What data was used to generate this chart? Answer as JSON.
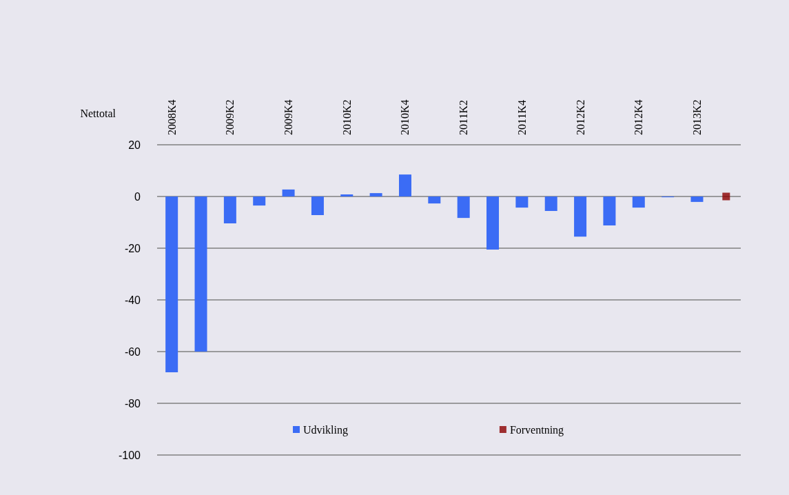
{
  "chart_data": {
    "type": "bar",
    "ylabel": "Nettotal",
    "categories": [
      "2008K4",
      null,
      "2009K2",
      null,
      "2009K4",
      null,
      "2010K2",
      null,
      "2010K4",
      null,
      "2011K2",
      null,
      "2011K4",
      null,
      "2012K2",
      null,
      "2012K4",
      null,
      "2013K2",
      null
    ],
    "series": [
      {
        "name": "Udvikling",
        "color": "#3b6cf5",
        "values": [
          -68,
          -60,
          -10.4,
          -3.5,
          2.7,
          -7.2,
          0.8,
          1.3,
          8.5,
          -2.7,
          -8.3,
          -20.5,
          -4.3,
          -5.6,
          -15.5,
          -11.2,
          -4.3,
          -0.3,
          -2.1,
          null
        ]
      },
      {
        "name": "Forventning",
        "type": "scatter",
        "marker": "square",
        "color": "#8b0000",
        "values": [
          null,
          null,
          null,
          null,
          null,
          null,
          null,
          null,
          null,
          null,
          null,
          null,
          null,
          null,
          null,
          null,
          null,
          null,
          null,
          0
        ]
      }
    ],
    "ylim": [
      -100,
      20
    ],
    "yticks": [
      -100,
      -80,
      -60,
      -40,
      -20,
      0,
      20
    ],
    "grid": "y",
    "legend": "bottom"
  }
}
